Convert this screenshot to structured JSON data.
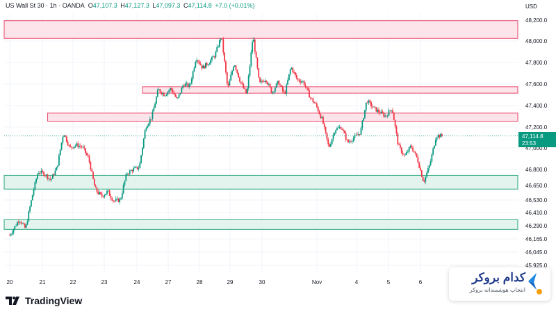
{
  "header": {
    "symbol": "US Wall St 30 · 1h · OANDA",
    "o_label": "O",
    "o_value": "47,107.3",
    "h_label": "H",
    "h_value": "47,127.3",
    "l_label": "L",
    "l_value": "47,097.3",
    "c_label": "C",
    "c_value": "47,114.8",
    "change": "+7.0 (+0.01%)"
  },
  "currency": "USD",
  "last_price": {
    "value": "47,114.8",
    "countdown": "23:53"
  },
  "branding": {
    "tradingview": "TradingView",
    "brand_name": "کدام بروکر",
    "brand_tagline": "انتخاب هوشمندانه بروکر"
  },
  "colors": {
    "up": "#089981",
    "down": "#f23645",
    "resistance_fill": "#fde4ea",
    "resistance_border": "#e8486b",
    "support_fill": "#e3f4ee",
    "support_border": "#2aa57c",
    "grid": "#f0f3fa"
  },
  "chart_data": {
    "type": "candlestick",
    "x_ticks": [
      "20",
      "21",
      "22",
      "23",
      "24",
      "27",
      "28",
      "29",
      "30",
      "Nov",
      "4",
      "5",
      "6"
    ],
    "y_ticks": [
      48200,
      48000,
      47800,
      47600,
      47400,
      47200,
      47000,
      46800,
      46650,
      46530,
      46410,
      46290,
      46165,
      46045,
      45925
    ],
    "y_tick_labels": [
      "48,200.0",
      "48,000.0",
      "47,800.0",
      "47,600.0",
      "47,400.0",
      "47,200.0",
      "47,000.0",
      "46,800.0",
      "46,650.0",
      "46,530.0",
      "46,410.0",
      "46,290.0",
      "46,165.0",
      "46,045.0",
      "45,925.0"
    ],
    "ylim": [
      45925,
      48200
    ],
    "last_price": 47114.8,
    "zones": [
      {
        "kind": "resistance",
        "top": 48195,
        "bottom": 48025,
        "start_day": 0,
        "end_day": 16
      },
      {
        "kind": "resistance",
        "top": 47575,
        "bottom": 47515,
        "start_day": 4.2,
        "end_day": 16
      },
      {
        "kind": "resistance",
        "top": 47330,
        "bottom": 47255,
        "start_day": 1.2,
        "end_day": 16
      },
      {
        "kind": "support",
        "top": 46745,
        "bottom": 46620,
        "start_day": 0,
        "end_day": 16
      },
      {
        "kind": "support",
        "top": 46345,
        "bottom": 46255,
        "start_day": 0,
        "end_day": 16
      }
    ],
    "price_path": [
      [
        0.0,
        46200
      ],
      [
        0.3,
        46350
      ],
      [
        0.5,
        46260
      ],
      [
        0.7,
        46550
      ],
      [
        0.9,
        46780
      ],
      [
        1.1,
        46760
      ],
      [
        1.3,
        46700
      ],
      [
        1.5,
        46820
      ],
      [
        1.7,
        47150
      ],
      [
        1.9,
        47000
      ],
      [
        2.1,
        47030
      ],
      [
        2.3,
        47010
      ],
      [
        2.5,
        46900
      ],
      [
        2.7,
        46620
      ],
      [
        2.9,
        46560
      ],
      [
        3.1,
        46600
      ],
      [
        3.3,
        46520
      ],
      [
        3.5,
        46530
      ],
      [
        3.7,
        46760
      ],
      [
        3.9,
        46800
      ],
      [
        4.1,
        46820
      ],
      [
        4.3,
        47200
      ],
      [
        4.5,
        47300
      ],
      [
        4.7,
        47550
      ],
      [
        4.9,
        47500
      ],
      [
        5.1,
        47560
      ],
      [
        5.3,
        47450
      ],
      [
        5.5,
        47600
      ],
      [
        5.7,
        47580
      ],
      [
        5.9,
        47850
      ],
      [
        6.1,
        47750
      ],
      [
        6.3,
        47800
      ],
      [
        6.5,
        47870
      ],
      [
        6.7,
        48050
      ],
      [
        6.9,
        47550
      ],
      [
        7.1,
        47800
      ],
      [
        7.3,
        47620
      ],
      [
        7.5,
        47500
      ],
      [
        7.7,
        48050
      ],
      [
        7.9,
        47600
      ],
      [
        8.1,
        47650
      ],
      [
        8.3,
        47520
      ],
      [
        8.5,
        47620
      ],
      [
        8.7,
        47500
      ],
      [
        8.9,
        47760
      ],
      [
        9.1,
        47640
      ],
      [
        9.3,
        47620
      ],
      [
        9.5,
        47480
      ],
      [
        9.7,
        47400
      ],
      [
        9.9,
        47260
      ],
      [
        10.1,
        47000
      ],
      [
        10.3,
        47180
      ],
      [
        10.5,
        47200
      ],
      [
        10.7,
        47050
      ],
      [
        10.9,
        47100
      ],
      [
        11.1,
        47150
      ],
      [
        11.3,
        47450
      ],
      [
        11.5,
        47380
      ],
      [
        11.7,
        47340
      ],
      [
        11.9,
        47300
      ],
      [
        12.1,
        47380
      ],
      [
        12.3,
        47020
      ],
      [
        12.5,
        46920
      ],
      [
        12.7,
        47020
      ],
      [
        12.9,
        46900
      ],
      [
        13.1,
        46680
      ],
      [
        13.3,
        46850
      ],
      [
        13.5,
        47120
      ],
      [
        13.7,
        47114.8
      ]
    ]
  }
}
